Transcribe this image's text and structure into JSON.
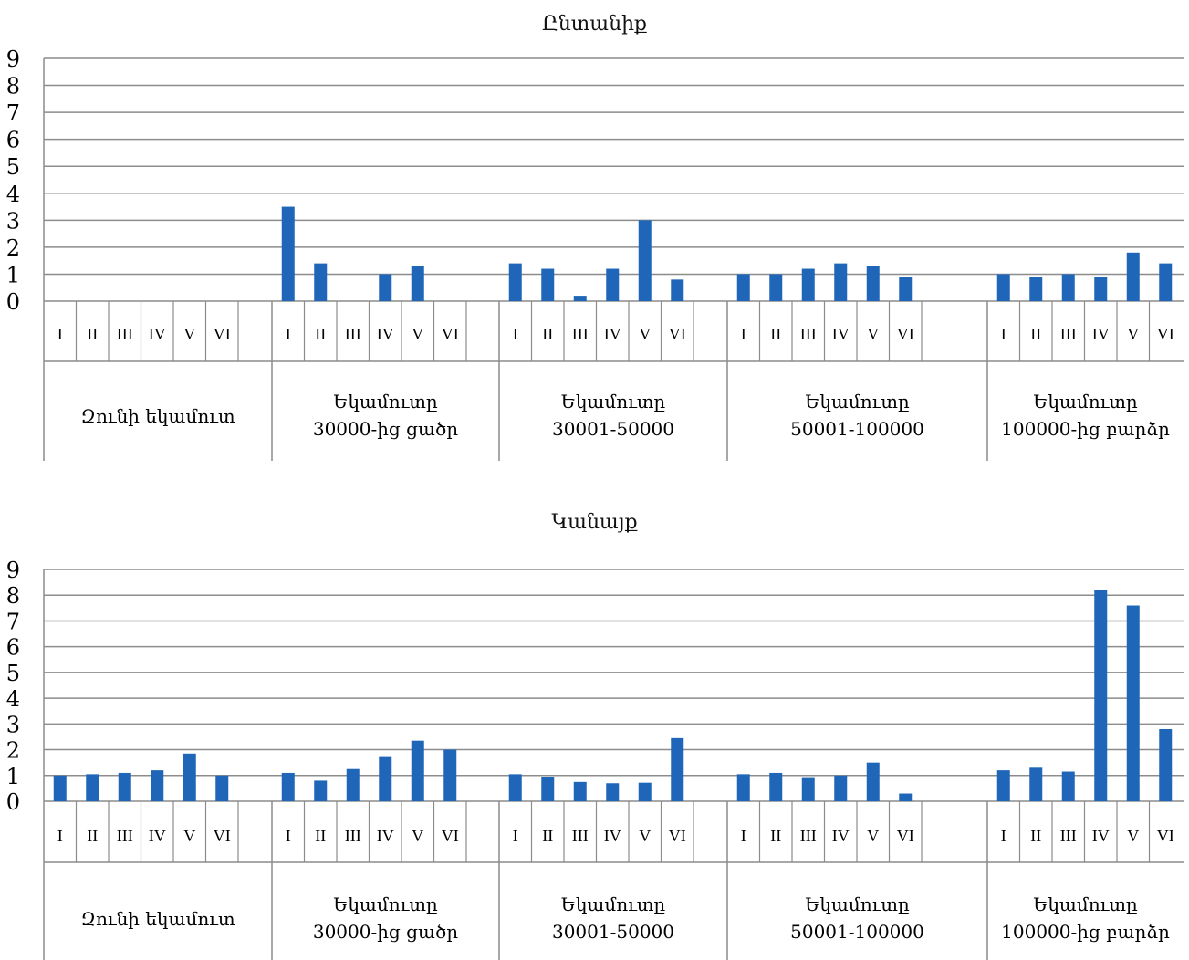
{
  "chart_data": [
    {
      "type": "bar",
      "title": "Ընտանիք",
      "ylim": [
        0,
        9
      ],
      "yticks": [
        0,
        1,
        2,
        3,
        4,
        5,
        6,
        7,
        8,
        9
      ],
      "grid": true,
      "color": "#1f66b8",
      "subcategories": [
        "I",
        "II",
        "III",
        "IV",
        "V",
        "VI"
      ],
      "groups": [
        {
          "label": [
            "Զունի եկամուտ"
          ],
          "values": [
            null,
            null,
            null,
            null,
            null,
            null
          ]
        },
        {
          "label": [
            "Եկամուտը",
            "30000-ից ցածր"
          ],
          "values": [
            3.5,
            1.4,
            null,
            1.0,
            1.3,
            null
          ]
        },
        {
          "label": [
            "Եկամուտը",
            "30001-50000"
          ],
          "values": [
            1.4,
            1.2,
            0.2,
            1.2,
            3.0,
            0.8
          ]
        },
        {
          "label": [
            "Եկամուտը",
            "50001-100000"
          ],
          "values": [
            1.0,
            1.0,
            1.2,
            1.4,
            1.3,
            0.9
          ]
        },
        {
          "label": [
            "Եկամուտը",
            "100000-ից բարձր"
          ],
          "values": [
            1.0,
            0.9,
            1.0,
            0.9,
            1.8,
            1.4
          ]
        }
      ]
    },
    {
      "type": "bar",
      "title": "Կանայք",
      "ylim": [
        0,
        9
      ],
      "yticks": [
        0,
        1,
        2,
        3,
        4,
        5,
        6,
        7,
        8,
        9
      ],
      "grid": true,
      "color": "#1f66b8",
      "subcategories": [
        "I",
        "II",
        "III",
        "IV",
        "V",
        "VI"
      ],
      "groups": [
        {
          "label": [
            "Զունի եկամուտ"
          ],
          "values": [
            1.0,
            1.05,
            1.1,
            1.2,
            1.85,
            1.0
          ]
        },
        {
          "label": [
            "Եկամուտը",
            "30000-ից ցածր"
          ],
          "values": [
            1.1,
            0.8,
            1.25,
            1.75,
            2.35,
            2.0
          ]
        },
        {
          "label": [
            "Եկամուտը",
            "30001-50000"
          ],
          "values": [
            1.05,
            0.95,
            0.75,
            0.7,
            0.72,
            2.45
          ]
        },
        {
          "label": [
            "Եկամուտը",
            "50001-100000"
          ],
          "values": [
            1.05,
            1.1,
            0.9,
            1.0,
            1.5,
            0.3
          ]
        },
        {
          "label": [
            "Եկամուտը",
            "100000-ից բարձր"
          ],
          "values": [
            1.2,
            1.3,
            1.15,
            8.2,
            7.6,
            2.8
          ]
        }
      ]
    }
  ]
}
